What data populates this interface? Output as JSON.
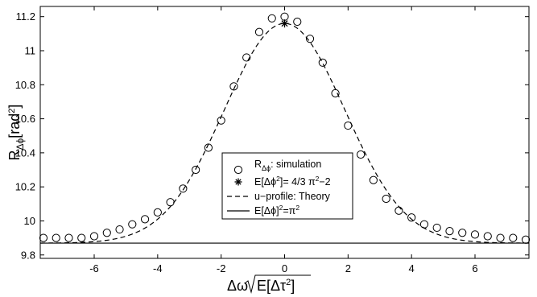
{
  "chart_data": {
    "type": "scatter",
    "xlabel": "Δω√E[Δτ²]",
    "ylabel": "RΔϕ[rad²]",
    "xlim": [
      -7.7,
      7.7
    ],
    "ylim": [
      9.78,
      11.26
    ],
    "xticks": [
      -6,
      -4,
      -2,
      0,
      2,
      4,
      6
    ],
    "xtick_labels": [
      "-6",
      "-4",
      "-2",
      "0",
      "2",
      "4",
      "6"
    ],
    "yticks": [
      9.8,
      10,
      10.2,
      10.4,
      10.6,
      10.8,
      11,
      11.2
    ],
    "ytick_labels": [
      "9.8",
      "10",
      "10.2",
      "10.4",
      "10.6",
      "10.8",
      "11",
      "11.2"
    ],
    "grid": false,
    "legend_position": "lower-center",
    "series": [
      {
        "name": "RΔϕ: simulation",
        "marker": "open-circle",
        "x": [
          -7.6,
          -7.2,
          -6.8,
          -6.4,
          -6.0,
          -5.6,
          -5.2,
          -4.8,
          -4.4,
          -4.0,
          -3.6,
          -3.2,
          -2.8,
          -2.4,
          -2.0,
          -1.6,
          -1.2,
          -0.8,
          -0.4,
          0.0,
          0.4,
          0.8,
          1.2,
          1.6,
          2.0,
          2.4,
          2.8,
          3.2,
          3.6,
          4.0,
          4.4,
          4.8,
          5.2,
          5.6,
          6.0,
          6.4,
          6.8,
          7.2,
          7.6
        ],
        "y": [
          9.9,
          9.9,
          9.9,
          9.9,
          9.91,
          9.93,
          9.95,
          9.98,
          10.01,
          10.05,
          10.11,
          10.19,
          10.3,
          10.43,
          10.59,
          10.79,
          10.96,
          11.11,
          11.19,
          11.2,
          11.17,
          11.07,
          10.93,
          10.75,
          10.56,
          10.39,
          10.24,
          10.13,
          10.06,
          10.02,
          9.98,
          9.96,
          9.94,
          9.93,
          9.92,
          9.91,
          9.9,
          9.9,
          9.89
        ]
      },
      {
        "name": "E[Δϕ²]= 4/3 π²−2",
        "marker": "asterisk",
        "x": [
          0.0
        ],
        "y": [
          11.16
        ]
      },
      {
        "name": "u−profile: Theory",
        "line": "dashed",
        "gaussian": {
          "base": 9.8696,
          "peak": 11.16,
          "sigma": 1.9
        },
        "x_range": [
          -7.7,
          7.7
        ]
      },
      {
        "name": "E[Δϕ]²=π²",
        "line": "solid",
        "x": [
          -7.7,
          7.7
        ],
        "y": [
          9.8696,
          9.8696
        ]
      }
    ],
    "legend": {
      "entries": [
        {
          "symbol": "open-circle",
          "label_main": "R",
          "label_sub": "Δϕ",
          "label_rest": ": simulation"
        },
        {
          "symbol": "asterisk",
          "label_plain": "E[Δϕ",
          "label_sup": "2",
          "label_rest": "]= 4/3 π",
          "label_sup2": "2",
          "label_end": "−2"
        },
        {
          "symbol": "dashed",
          "label_plain": "u−profile: Theory"
        },
        {
          "symbol": "solid",
          "label_plain": "E[Δϕ]",
          "label_sup": "2",
          "label_rest": "=π",
          "label_sup2": "2"
        }
      ]
    }
  }
}
